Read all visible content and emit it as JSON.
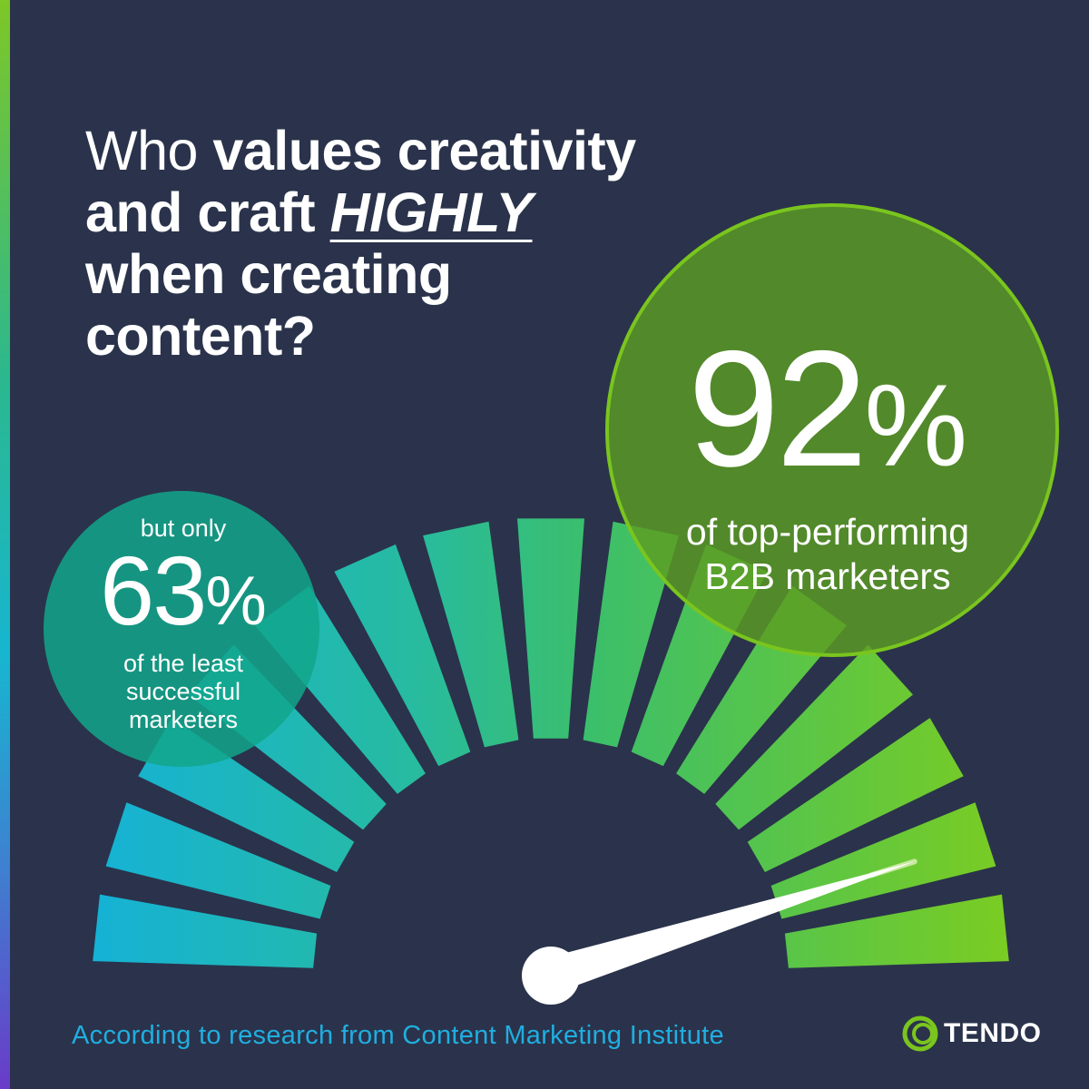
{
  "title": {
    "line1_a": "Who",
    "line1_b": "values creativity",
    "line2_a": "and craft",
    "line2_b": "HIGHLY",
    "line3": "when creating",
    "line4": "content?"
  },
  "stat_top": {
    "value": "92",
    "unit": "%",
    "line1": "of top-performing",
    "line2": "B2B marketers"
  },
  "stat_least": {
    "prefix": "but only",
    "value": "63",
    "unit": "%",
    "line1": "of the least",
    "line2": "successful",
    "line3": "marketers"
  },
  "gauge": {
    "segments": 15,
    "needle_value_pct": 92
  },
  "footer": {
    "source": "According to research from Content Marketing Institute"
  },
  "brand": {
    "name": "TENDO",
    "icon": "tendo-ring-logo"
  },
  "colors": {
    "background": "#2a334b",
    "green_circle": "#5b9c23",
    "teal_circle": "#12a58b",
    "source_text": "#20aee0"
  }
}
